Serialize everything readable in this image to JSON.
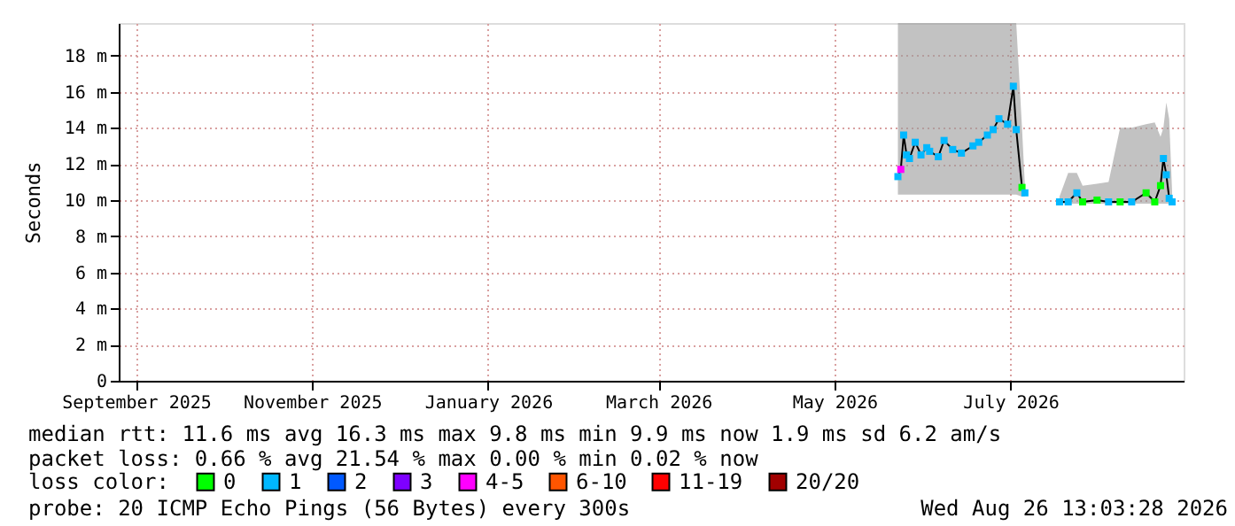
{
  "chart_data": {
    "type": "line",
    "ylabel": "Seconds",
    "legend_title": "loss color:",
    "legend": "bottom",
    "grid": true,
    "xlim": [
      "2025-08-26",
      "2026-08-30"
    ],
    "xticks": [
      {
        "value": "2025-09-01",
        "label": "September 2025"
      },
      {
        "value": "2025-11-01",
        "label": "November 2025"
      },
      {
        "value": "2026-01-01",
        "label": "January 2026"
      },
      {
        "value": "2026-03-01",
        "label": "March 2026"
      },
      {
        "value": "2026-05-01",
        "label": "May 2026"
      },
      {
        "value": "2026-07-01",
        "label": "July 2026"
      }
    ],
    "ylim": [
      0,
      19.8
    ],
    "yticks": [
      0,
      {
        "value": 2,
        "label": "2 m"
      },
      {
        "value": 4,
        "label": "4 m"
      },
      {
        "value": 6,
        "label": "6 m"
      },
      {
        "value": 8,
        "label": "8 m"
      },
      {
        "value": 10,
        "label": "10 m"
      },
      {
        "value": 12,
        "label": "12 m"
      },
      {
        "value": 14,
        "label": "14 m"
      },
      {
        "value": 16,
        "label": "16 m"
      },
      {
        "value": 18,
        "label": "18 m"
      }
    ],
    "series": [
      {
        "marker": "none",
        "color": "#000000",
        "x": [
          "2026-05-23",
          "2026-05-24",
          "2026-05-25",
          "2026-05-26",
          "2026-05-27",
          "2026-05-29",
          "2026-05-31",
          "2026-06-02",
          "2026-06-03",
          "2026-06-06",
          "2026-06-08",
          "2026-06-11",
          "2026-06-14",
          "2026-06-18",
          "2026-06-20",
          "2026-06-23",
          "2026-06-25",
          "2026-06-27",
          "2026-06-30",
          "2026-07-02",
          "2026-07-03",
          "2026-07-05",
          "2026-07-06",
          "2026-07-12",
          "2026-07-18",
          "2026-07-21",
          "2026-07-24",
          "2026-07-26",
          "2026-07-31",
          "2026-08-04",
          "2026-08-08",
          "2026-08-12",
          "2026-08-17",
          "2026-08-20",
          "2026-08-22",
          "2026-08-23",
          "2026-08-24",
          "2026-08-25",
          "2026-08-26"
        ],
        "values": [
          11.3,
          11.7,
          13.6,
          12.5,
          12.3,
          13.2,
          12.5,
          12.9,
          12.7,
          12.4,
          13.3,
          12.8,
          12.6,
          13.0,
          13.2,
          13.6,
          13.9,
          14.5,
          14.2,
          16.3,
          13.9,
          10.7,
          10.4,
          null,
          9.9,
          9.9,
          10.4,
          9.9,
          10.0,
          9.9,
          9.9,
          9.9,
          10.4,
          9.9,
          10.8,
          12.3,
          11.4,
          10.1,
          9.9
        ],
        "lower": [
          10.3,
          10.3,
          10.3,
          10.3,
          10.3,
          10.3,
          10.3,
          10.3,
          10.3,
          10.3,
          10.3,
          10.3,
          10.3,
          10.3,
          10.3,
          10.3,
          10.3,
          10.3,
          10.3,
          10.3,
          10.3,
          10.2,
          10.2,
          null,
          9.8,
          9.8,
          9.8,
          9.8,
          9.8,
          9.8,
          9.8,
          9.8,
          9.8,
          9.8,
          9.8,
          9.8,
          9.8,
          9.8,
          9.8
        ],
        "upper": [
          19.8,
          19.8,
          19.8,
          19.8,
          19.8,
          19.8,
          19.8,
          19.8,
          19.8,
          19.8,
          19.8,
          19.8,
          19.8,
          19.8,
          19.8,
          19.8,
          19.8,
          19.8,
          19.8,
          19.8,
          19.8,
          14.0,
          10.8,
          null,
          10.2,
          11.5,
          11.5,
          10.8,
          10.9,
          11.0,
          14.0,
          14.0,
          14.2,
          14.3,
          13.5,
          14.0,
          15.4,
          14.5,
          10.5
        ]
      },
      {
        "type": "scatter",
        "marker": "square",
        "name": "0",
        "color": "#00ff00",
        "x": [
          "2026-07-05",
          "2026-07-26",
          "2026-07-31",
          "2026-08-08",
          "2026-08-17",
          "2026-08-20",
          "2026-08-22"
        ],
        "values": [
          10.7,
          9.9,
          10.0,
          9.9,
          10.4,
          9.9,
          10.8
        ]
      },
      {
        "type": "scatter",
        "marker": "square",
        "name": "1",
        "color": "#00b8ff",
        "x": [
          "2026-05-23",
          "2026-05-25",
          "2026-05-26",
          "2026-05-27",
          "2026-05-29",
          "2026-05-31",
          "2026-06-02",
          "2026-06-03",
          "2026-06-06",
          "2026-06-08",
          "2026-06-11",
          "2026-06-14",
          "2026-06-18",
          "2026-06-20",
          "2026-06-23",
          "2026-06-25",
          "2026-06-27",
          "2026-06-30",
          "2026-07-02",
          "2026-07-03",
          "2026-07-06",
          "2026-07-18",
          "2026-07-21",
          "2026-07-24",
          "2026-08-04",
          "2026-08-12",
          "2026-08-23",
          "2026-08-24",
          "2026-08-25",
          "2026-08-26"
        ],
        "values": [
          11.3,
          13.6,
          12.5,
          12.3,
          13.2,
          12.5,
          12.9,
          12.7,
          12.4,
          13.3,
          12.8,
          12.6,
          13.0,
          13.2,
          13.6,
          13.9,
          14.5,
          14.2,
          16.3,
          13.9,
          10.4,
          9.9,
          9.9,
          10.4,
          9.9,
          9.9,
          12.3,
          11.4,
          10.1,
          9.9
        ]
      },
      {
        "type": "scatter",
        "marker": "square",
        "name": "2",
        "color": "#0059ff"
      },
      {
        "type": "scatter",
        "marker": "square",
        "name": "3",
        "color": "#7e00ff"
      },
      {
        "type": "scatter",
        "marker": "square",
        "name": "4-5",
        "color": "#ff00ff",
        "x": [
          "2026-05-24"
        ],
        "values": [
          11.7
        ]
      },
      {
        "type": "scatter",
        "marker": "square",
        "name": "6-10",
        "color": "#ff5500"
      },
      {
        "type": "scatter",
        "marker": "square",
        "name": "11-19",
        "color": "#ff0000"
      },
      {
        "type": "scatter",
        "marker": "square",
        "name": "20/20",
        "color": "#a10000"
      }
    ],
    "annotations": [
      "median rtt: 11.6 ms avg 16.3 ms max 9.8 ms min 9.9 ms now 1.9 ms sd 6.2 am/s",
      "packet loss: 0.66 % avg 21.54 % max 0.00 % min 0.02 % now",
      "probe: 20 ICMP Echo Pings (56 Bytes) every 300s",
      "Wed Aug 26 13:03:28 2026"
    ]
  }
}
